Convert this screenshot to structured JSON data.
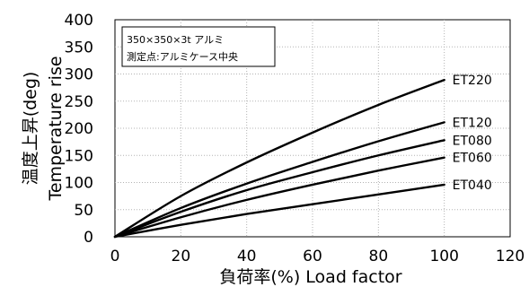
{
  "chart_data": {
    "type": "line",
    "xlabel": "負荷率(%)  Load factor",
    "ylabel_ja": "温度上昇(deg)",
    "ylabel_en": "Temperature rise",
    "xlim": [
      0,
      120
    ],
    "ylim": [
      0,
      400
    ],
    "xticks": [
      0,
      20,
      40,
      60,
      80,
      100,
      120
    ],
    "yticks": [
      0,
      50,
      100,
      150,
      200,
      250,
      300,
      350,
      400
    ],
    "grid": true,
    "annotation": [
      "350×350×3t  アルミ",
      "測定点:アルミケース中央"
    ],
    "series": [
      {
        "name": "ET220",
        "x": [
          0,
          20,
          40,
          60,
          80,
          100
        ],
        "values": [
          0,
          75,
          137,
          192,
          243,
          289
        ]
      },
      {
        "name": "ET120",
        "x": [
          0,
          20,
          40,
          60,
          80,
          100
        ],
        "values": [
          0,
          53,
          98,
          138,
          176,
          211
        ]
      },
      {
        "name": "ET080",
        "x": [
          0,
          20,
          40,
          60,
          80,
          100
        ],
        "values": [
          0,
          46,
          86,
          119,
          150,
          178
        ]
      },
      {
        "name": "ET060",
        "x": [
          0,
          20,
          40,
          60,
          80,
          100
        ],
        "values": [
          0,
          36,
          68,
          96,
          122,
          146
        ]
      },
      {
        "name": "ET040",
        "x": [
          0,
          20,
          40,
          60,
          80,
          100
        ],
        "values": [
          0,
          22,
          42,
          60,
          78,
          96
        ]
      }
    ]
  }
}
